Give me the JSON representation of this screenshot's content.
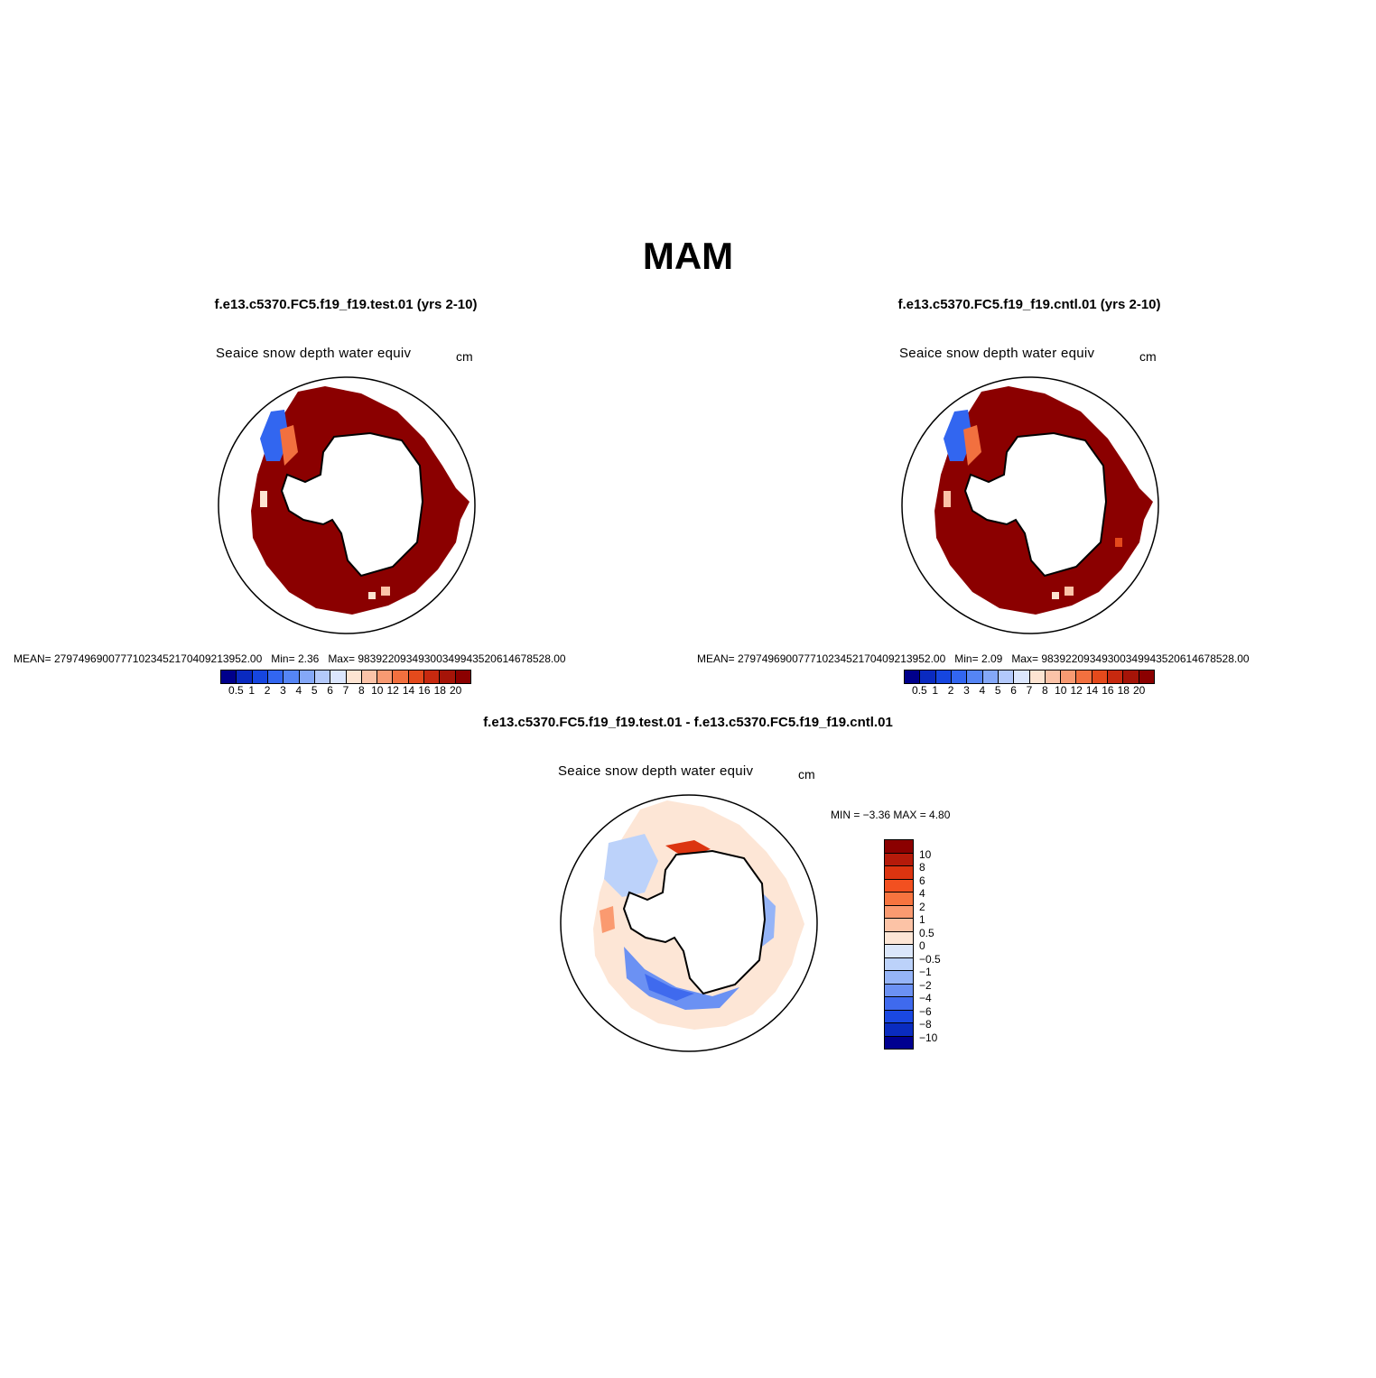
{
  "figure": {
    "title": "MAM"
  },
  "panels": [
    {
      "id": "test",
      "title": "f.e13.c5370.FC5.f19_f19.test.01 (yrs 2-10)",
      "variable": "Seaice snow depth water equiv",
      "units": "cm",
      "stats": {
        "mean": "MEAN= 2797496900777102345217040921395​2.00",
        "min": "Min=    2.36",
        "max": "Max= 98392209349300349943520614678528.00"
      },
      "colorbar": {
        "ticks": [
          "0.5",
          "1",
          "2",
          "3",
          "4",
          "5",
          "6",
          "7",
          "8",
          "10",
          "12",
          "14",
          "16",
          "18",
          "20"
        ],
        "colors": [
          "#00008b",
          "#0a2ac0",
          "#1646e0",
          "#3266f0",
          "#5585f5",
          "#84a8f8",
          "#b3c9fb",
          "#dbe6fd",
          "#fde4d2",
          "#fbc3a8",
          "#f89a72",
          "#f2703f",
          "#e44a1c",
          "#c7290f",
          "#a51408",
          "#8b0000"
        ]
      }
    },
    {
      "id": "cntl",
      "title": "f.e13.c5370.FC5.f19_f19.cntl.01 (yrs 2-10)",
      "variable": "Seaice snow depth water equiv",
      "units": "cm",
      "stats": {
        "mean": "MEAN= 27974969007771023452170409213952.00",
        "min": "Min=    2.09",
        "max": "Max= 98392209349300349943520614678528.00"
      },
      "colorbar": {
        "ticks": [
          "0.5",
          "1",
          "2",
          "3",
          "4",
          "5",
          "6",
          "7",
          "8",
          "10",
          "12",
          "14",
          "16",
          "18",
          "20"
        ],
        "colors": [
          "#00008b",
          "#0a2ac0",
          "#1646e0",
          "#3266f0",
          "#5585f5",
          "#84a8f8",
          "#b3c9fb",
          "#dbe6fd",
          "#fde4d2",
          "#fbc3a8",
          "#f89a72",
          "#f2703f",
          "#e44a1c",
          "#c7290f",
          "#a51408",
          "#8b0000"
        ]
      }
    },
    {
      "id": "diff",
      "title": "f.e13.c5370.FC5.f19_f19.test.01 - f.e13.c5370.FC5.f19_f19.cntl.01",
      "variable": "Seaice snow depth water equiv",
      "units": "cm",
      "stats": {
        "minmax": "MIN =   −3.36  MAX =     4.80"
      },
      "colorbar": {
        "ticks": [
          "10",
          "8",
          "6",
          "4",
          "2",
          "1",
          "0.5",
          "0",
          "−0.5",
          "−1",
          "−2",
          "−4",
          "−6",
          "−8",
          "−10"
        ],
        "colors": [
          "#8b0000",
          "#b51a0a",
          "#dc3410",
          "#f25020",
          "#f7743f",
          "#fa9a70",
          "#fcc3a6",
          "#fde6d6",
          "#dbe7fb",
          "#bcd2fa",
          "#95b4f7",
          "#6b91f3",
          "#3f6aee",
          "#1a48e2",
          "#0a2cc0",
          "#000090"
        ]
      }
    }
  ]
}
